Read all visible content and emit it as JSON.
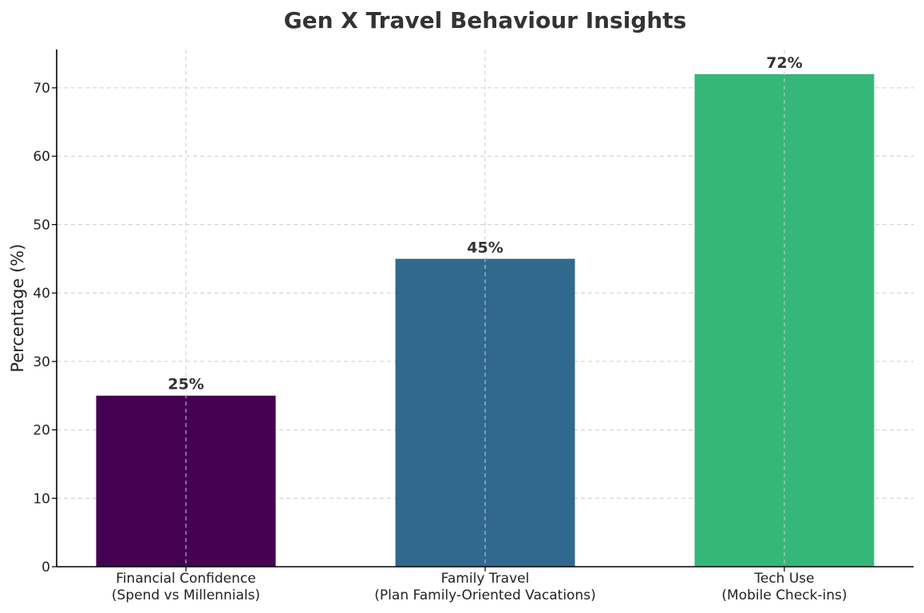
{
  "chart_data": {
    "type": "bar",
    "title": "Gen X Travel Behaviour Insights",
    "xlabel": "",
    "ylabel": "Percentage (%)",
    "ylim": [
      0,
      75.6
    ],
    "yticks": [
      0,
      10,
      20,
      30,
      40,
      50,
      60,
      70
    ],
    "grid": true,
    "categories": [
      [
        "Financial Confidence",
        "(Spend vs Millennials)"
      ],
      [
        "Family Travel",
        "(Plan Family-Oriented Vacations)"
      ],
      [
        "Tech Use",
        "(Mobile Check-ins)"
      ]
    ],
    "values": [
      25,
      45,
      72
    ],
    "value_labels": [
      "25%",
      "45%",
      "72%"
    ],
    "colors": [
      "#440154",
      "#31688e",
      "#35b779"
    ]
  }
}
